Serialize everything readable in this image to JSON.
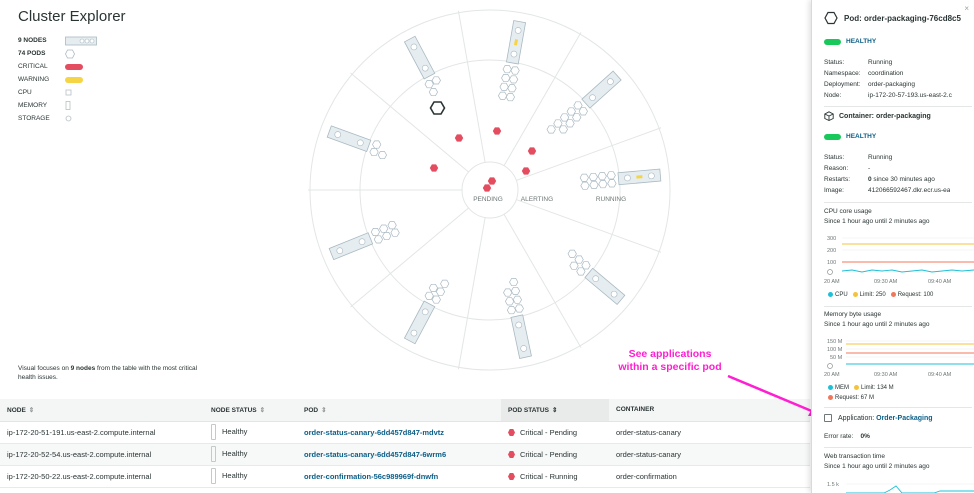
{
  "title": "Cluster Explorer",
  "legend": {
    "nodes": "9 NODES",
    "pods": "74 PODS",
    "critical": "CRITICAL",
    "warning": "WARNING",
    "cpu": "CPU",
    "memory": "MEMORY",
    "storage": "STORAGE"
  },
  "ring_labels": {
    "pending": "PENDING",
    "alerting": "ALERTING",
    "running": "RUNNING"
  },
  "footnote": {
    "prefix": "Visual focuses on ",
    "bold": "9 nodes",
    "suffix": " from the table with the most critical health issues."
  },
  "table": {
    "headers": [
      "NODE",
      "NODE STATUS",
      "POD",
      "POD STATUS",
      "CONTAINER"
    ],
    "sort_icon": "⇕",
    "sort_active_icon": "⇕",
    "rows": [
      {
        "node": "ip-172-20-51-191.us-east-2.compute.internal",
        "node_status": "Healthy",
        "pod": "order-status-canary-6dd457d847-mdvtz",
        "pod_status": "Critical - Pending",
        "container": "order-status-canary"
      },
      {
        "node": "ip-172-20-52-54.us-east-2.compute.internal",
        "node_status": "Healthy",
        "pod": "order-status-canary-6dd457d847-6wrm6",
        "pod_status": "Critical - Pending",
        "container": "order-status-canary"
      },
      {
        "node": "ip-172-20-50-22.us-east-2.compute.internal",
        "node_status": "Healthy",
        "pod": "order-confirmation-56c989969f-dnwfn",
        "pod_status": "Critical - Running",
        "container": "order-confirmation"
      }
    ]
  },
  "panel": {
    "close": "×",
    "pod_title": "Pod: order-packaging-76cd8c5",
    "pod_health": "HEALTHY",
    "pod_fields": [
      {
        "k": "Status:",
        "v": "Running"
      },
      {
        "k": "Namespace:",
        "v": "coordination"
      },
      {
        "k": "Deployment:",
        "v": "order-packaging"
      },
      {
        "k": "Node:",
        "v": "ip-172-20-57-193.us-east-2.c"
      }
    ],
    "container_title": "Container: order-packaging",
    "container_health": "HEALTHY",
    "container_fields": [
      {
        "k": "Status:",
        "v": "Running"
      },
      {
        "k": "Reason:",
        "v": "-"
      },
      {
        "k": "Restarts:",
        "v_bold": "0",
        "v": " since 30 minutes ago"
      },
      {
        "k": "Image:",
        "v": "412066592467.dkr.ecr.us-ea"
      }
    ],
    "cpu_chart": {
      "title": "CPU core usage",
      "subtitle": "Since 1 hour ago until 2 minutes ago",
      "y_ticks": [
        "300",
        "200",
        "100",
        "0"
      ],
      "x_ticks": [
        "20 AM",
        "09:30 AM",
        "09:40 AM"
      ],
      "legend": [
        "CPU",
        "Limit: 250",
        "Request: 100"
      ]
    },
    "mem_chart": {
      "title": "Memory byte usage",
      "subtitle": "Since 1 hour ago until 2 minutes ago",
      "y_ticks": [
        "150 M",
        "100 M",
        "50 M",
        "0"
      ],
      "x_ticks": [
        "20 AM",
        "09:30 AM",
        "09:40 AM"
      ],
      "legend": [
        "MEM",
        "Limit: 134 M",
        "Request: 67 M"
      ]
    },
    "app_label": "Application: ",
    "app_name": "Order-Packaging",
    "error_rate_label": "Error rate:",
    "error_rate_value": "0%",
    "web_title": "Web transaction time",
    "web_subtitle": "Since 1 hour ago until 2 minutes ago",
    "web_tick": "1.5 k"
  },
  "annotation": {
    "line1": "See applications",
    "line2": "within a specific pod"
  },
  "colors": {
    "critical": "#e44c5f",
    "warning": "#f5d445",
    "healthy": "#19c85b",
    "link": "#0b5e87",
    "annotation": "#ff1ed1",
    "cpu_line": "#1ec0d8",
    "limit_line": "#f5c33b",
    "request_line": "#f0775a"
  }
}
